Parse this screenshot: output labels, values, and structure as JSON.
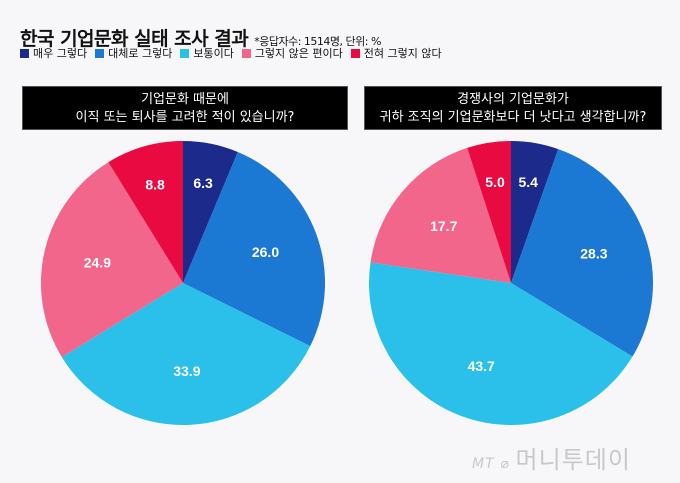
{
  "title": "한국 기업문화 실태 조사 결과",
  "note": "*응답자수: 1514명, 단위: %",
  "logo": "MT 머니투데이",
  "chart_data": [
    {
      "type": "pie",
      "title": "기업문화 때문에\n이직 또는 퇴사를 고려한 적이 있습니까?",
      "categories": [
        "매우 그렇다",
        "대체로 그렇다",
        "보통이다",
        "그렇지 않은 편이다",
        "전혀 그렇지 않다"
      ],
      "values": [
        6.3,
        26.0,
        33.9,
        24.9,
        8.8
      ]
    },
    {
      "type": "pie",
      "title": "경쟁사의 기업문화가\n귀하 조직의 기업문화보다 더 낫다고 생각합니까?",
      "categories": [
        "매우 그렇다",
        "대체로 그렇다",
        "보통이다",
        "그렇지 않은 편이다",
        "전혀 그렇지 않다"
      ],
      "values": [
        5.4,
        28.3,
        43.7,
        17.7,
        5.0
      ]
    }
  ],
  "legend": [
    "매우 그렇다",
    "대체로 그렇다",
    "보통이다",
    "그렇지 않은 편이다",
    "전혀 그렇지 않다"
  ],
  "colors": [
    "#1c2a8c",
    "#1b78d3",
    "#2bc0ea",
    "#f2668c",
    "#e80a40"
  ]
}
